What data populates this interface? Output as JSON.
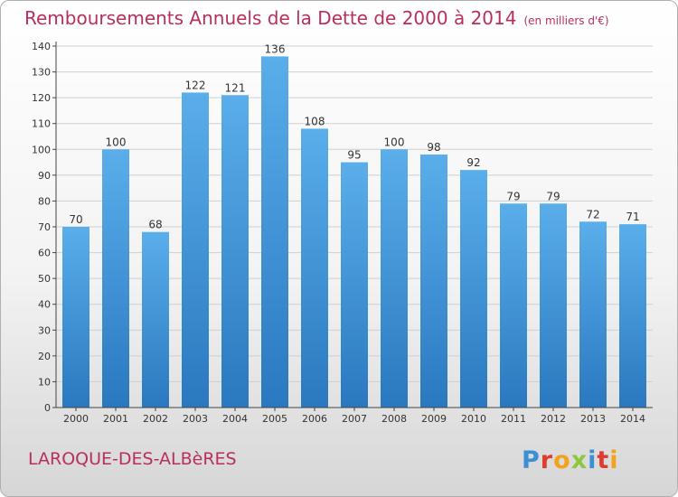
{
  "chart": {
    "title": "Remboursements Annuels de la Dette de 2000 à 2014",
    "unit": "(en milliers d'€)",
    "place": "LAROQUE-DES-ALBèRES",
    "brand": "Proxiti"
  },
  "colors": {
    "title": "#b8305a",
    "bar_top": "#5aaeea",
    "bar_bottom": "#2a78bf",
    "grid": "#cfcfcf",
    "axis": "#444444"
  },
  "brand_letter_colors": [
    "#3d8fd4",
    "#e03b2e",
    "#f2a31b",
    "#8dc63f",
    "#3d8fd4",
    "#e03b2e",
    "#f2a31b"
  ],
  "chart_data": {
    "type": "bar",
    "title": "Remboursements Annuels de la Dette de 2000 à 2014",
    "subtitle": "(en milliers d'€)",
    "categories": [
      "2000",
      "2001",
      "2002",
      "2003",
      "2004",
      "2005",
      "2006",
      "2007",
      "2008",
      "2009",
      "2010",
      "2011",
      "2012",
      "2013",
      "2014"
    ],
    "values": [
      70,
      100,
      68,
      122,
      121,
      136,
      108,
      95,
      100,
      98,
      92,
      79,
      79,
      72,
      71
    ],
    "ylim": [
      0,
      140
    ],
    "yticks": [
      0,
      10,
      20,
      30,
      40,
      50,
      60,
      70,
      80,
      90,
      100,
      110,
      120,
      130,
      140
    ],
    "grid": true,
    "xlabel": "",
    "ylabel": ""
  }
}
